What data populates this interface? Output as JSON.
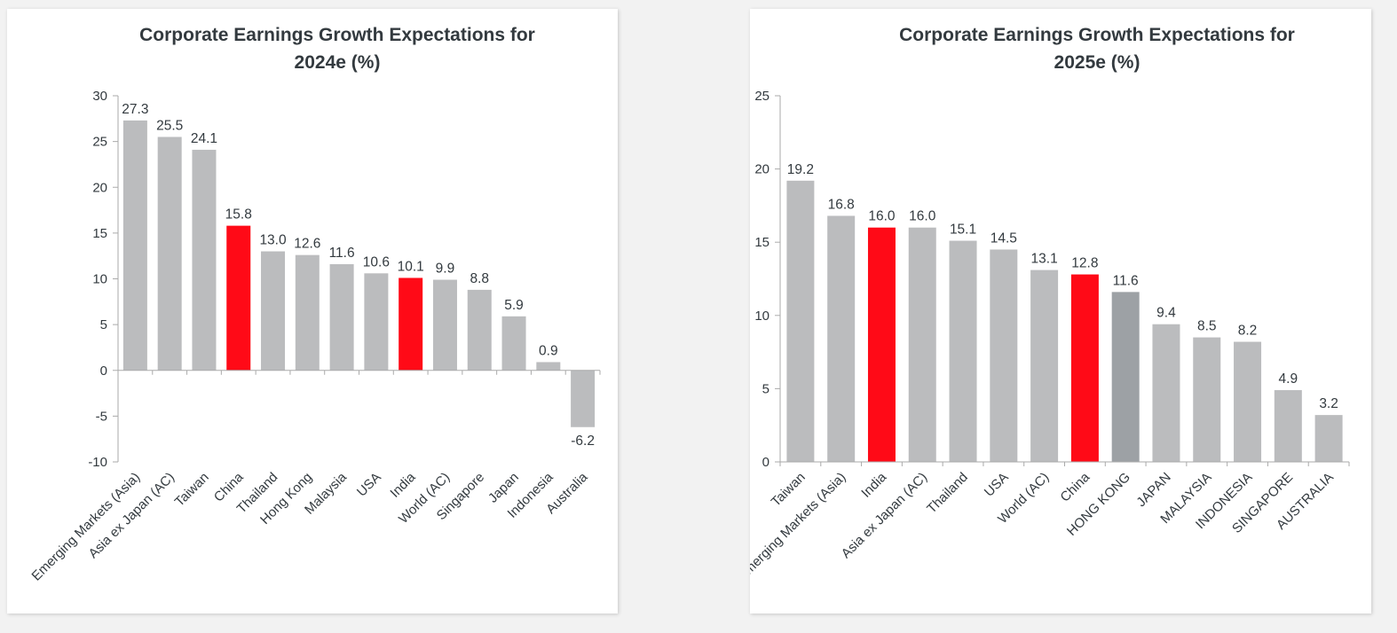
{
  "colors": {
    "default_bar": "#bbbcbe",
    "highlight_bar": "#ff0a17",
    "hong_kong_bar": "#9da1a5",
    "axis": "#aaaaaa",
    "text": "#333a3f"
  },
  "chart_data": [
    {
      "type": "bar",
      "title_line1": "Corporate Earnings Growth Expectations for",
      "title_line2": "2024e (%)",
      "categories": [
        "Emerging Markets (Asia)",
        "Asia ex Japan (AC)",
        "Taiwan",
        "China",
        "Thailand",
        "Hong Kong",
        "Malaysia",
        "USA",
        "India",
        "World (AC)",
        "Singapore",
        "Japan",
        "Indonesia",
        "Australia"
      ],
      "values": [
        27.3,
        25.5,
        24.1,
        15.8,
        13.0,
        12.6,
        11.6,
        10.6,
        10.1,
        9.9,
        8.8,
        5.9,
        0.9,
        -6.2
      ],
      "value_labels": [
        "27.3",
        "25.5",
        "24.1",
        "15.8",
        "13.0",
        "12.6",
        "11.6",
        "10.6",
        "10.1",
        "9.9",
        "8.8",
        "5.9",
        "0.9",
        "-6.2"
      ],
      "bar_colors": [
        "default",
        "default",
        "default",
        "highlight",
        "default",
        "default",
        "default",
        "default",
        "highlight",
        "default",
        "default",
        "default",
        "default",
        "default"
      ],
      "ylim": [
        -10,
        30
      ],
      "yticks": [
        "30",
        "25",
        "20",
        "15",
        "10",
        "5",
        "0",
        "-5",
        "-10"
      ],
      "ytick_values": [
        30,
        25,
        20,
        15,
        10,
        5,
        0,
        -5,
        -10
      ],
      "grid": false,
      "legend": "none"
    },
    {
      "type": "bar",
      "title_line1": "Corporate Earnings Growth Expectations for",
      "title_line2": "2025e (%)",
      "categories": [
        "Taiwan",
        "Emerging Markets (Asia)",
        "India",
        "Asia ex Japan (AC)",
        "Thailand",
        "USA",
        "World (AC)",
        "China",
        "HONG KONG",
        "JAPAN",
        "MALAYSIA",
        "INDONESIA",
        "SINGAPORE",
        "AUSTRALIA"
      ],
      "values": [
        19.2,
        16.8,
        16.0,
        16.0,
        15.1,
        14.5,
        13.1,
        12.8,
        11.6,
        9.4,
        8.5,
        8.2,
        4.9,
        3.2
      ],
      "value_labels": [
        "19.2",
        "16.8",
        "16.0",
        "16.0",
        "15.1",
        "14.5",
        "13.1",
        "12.8",
        "11.6",
        "9.4",
        "8.5",
        "8.2",
        "4.9",
        "3.2"
      ],
      "bar_colors": [
        "default",
        "default",
        "highlight",
        "default",
        "default",
        "default",
        "default",
        "highlight",
        "hong_kong",
        "default",
        "default",
        "default",
        "default",
        "default"
      ],
      "ylim": [
        0,
        25
      ],
      "yticks": [
        "25",
        "20",
        "15",
        "10",
        "5",
        "0"
      ],
      "ytick_values": [
        25,
        20,
        15,
        10,
        5,
        0
      ],
      "grid": false,
      "legend": "none"
    }
  ]
}
